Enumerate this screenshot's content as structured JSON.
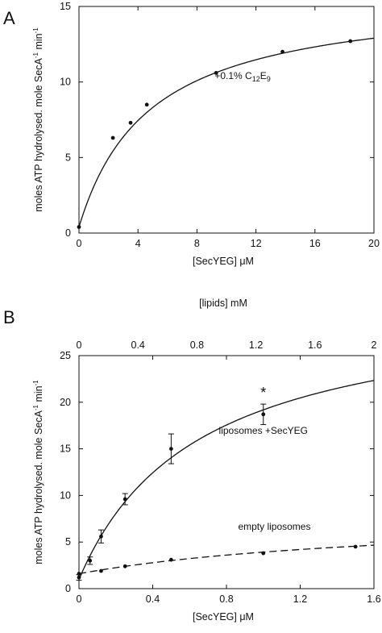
{
  "chart_data": [
    {
      "panel_label": "A",
      "type": "scatter",
      "xlabel_prefix": "[SecYEG] ",
      "xlabel_unit": "μM",
      "ylabel": "moles ATP hydrolysed. mole SecA",
      "ylabel_unit": "min",
      "ylabel_exp": "-1",
      "xlim": [
        0,
        20
      ],
      "ylim": [
        0,
        15
      ],
      "xticks": [
        0,
        4,
        8,
        12,
        16,
        20
      ],
      "yticks": [
        0,
        5,
        10,
        15
      ],
      "grid": false,
      "series": [
        {
          "x": [
            0,
            2.3,
            3.5,
            4.6,
            9.3,
            13.8,
            18.4
          ],
          "y": [
            0.4,
            6.3,
            7.3,
            8.5,
            10.6,
            12.0,
            12.7
          ],
          "fit_curve": {
            "model": "hyperbolic",
            "v0": 0.4,
            "vmax": 15.5,
            "km": 4.8
          }
        }
      ],
      "annotations": [
        {
          "text": "+0.1% C",
          "sub1": "12",
          "mid": "E",
          "sub2": "9",
          "x": 9.2,
          "y": 10.2
        }
      ]
    },
    {
      "panel_label": "B",
      "type": "scatter",
      "xlabel_prefix": "[SecYEG] ",
      "xlabel_unit": "μM",
      "x2label": "[lipids] mM",
      "ylabel": "moles ATP hydrolysed. mole SecA",
      "ylabel_unit": "min",
      "ylabel_exp": "-1",
      "xlim": [
        0,
        1.6
      ],
      "x2lim": [
        0,
        2
      ],
      "ylim": [
        0,
        25
      ],
      "xticks": [
        0,
        0.4,
        0.8,
        1.2,
        1.6
      ],
      "x2ticks": [
        0,
        0.4,
        0.8,
        1.2,
        1.6,
        2
      ],
      "yticks": [
        0,
        5,
        10,
        15,
        20,
        25
      ],
      "grid": false,
      "series": [
        {
          "label": "liposomes +SecYEG",
          "x": [
            0,
            0.06,
            0.12,
            0.25,
            0.5,
            1.0
          ],
          "y": [
            1.2,
            3.0,
            5.6,
            9.6,
            15.0,
            18.7
          ],
          "err": [
            0.3,
            0.4,
            0.7,
            0.6,
            1.6,
            1.1
          ],
          "line": "solid",
          "fit_curve": {
            "model": "hyperbolic",
            "v0": 1.0,
            "vmax": 30.0,
            "km": 0.65
          }
        },
        {
          "label": "empty liposomes",
          "x": [
            0,
            0.12,
            0.25,
            0.5,
            1.0,
            1.5
          ],
          "y": [
            1.6,
            1.9,
            2.4,
            3.1,
            3.8,
            4.5
          ],
          "line": "dashed",
          "fit_curve": {
            "model": "hyperbolic",
            "v0": 1.6,
            "vmax": 6.5,
            "km": 1.8
          }
        }
      ],
      "annotations": [
        {
          "text": "liposomes +SecYEG",
          "x": 1.0,
          "y": 16.6
        },
        {
          "text": "empty liposomes",
          "x": 1.06,
          "y": 6.3
        },
        {
          "text": "*",
          "x": 1.0,
          "y": 21.0
        }
      ]
    }
  ]
}
